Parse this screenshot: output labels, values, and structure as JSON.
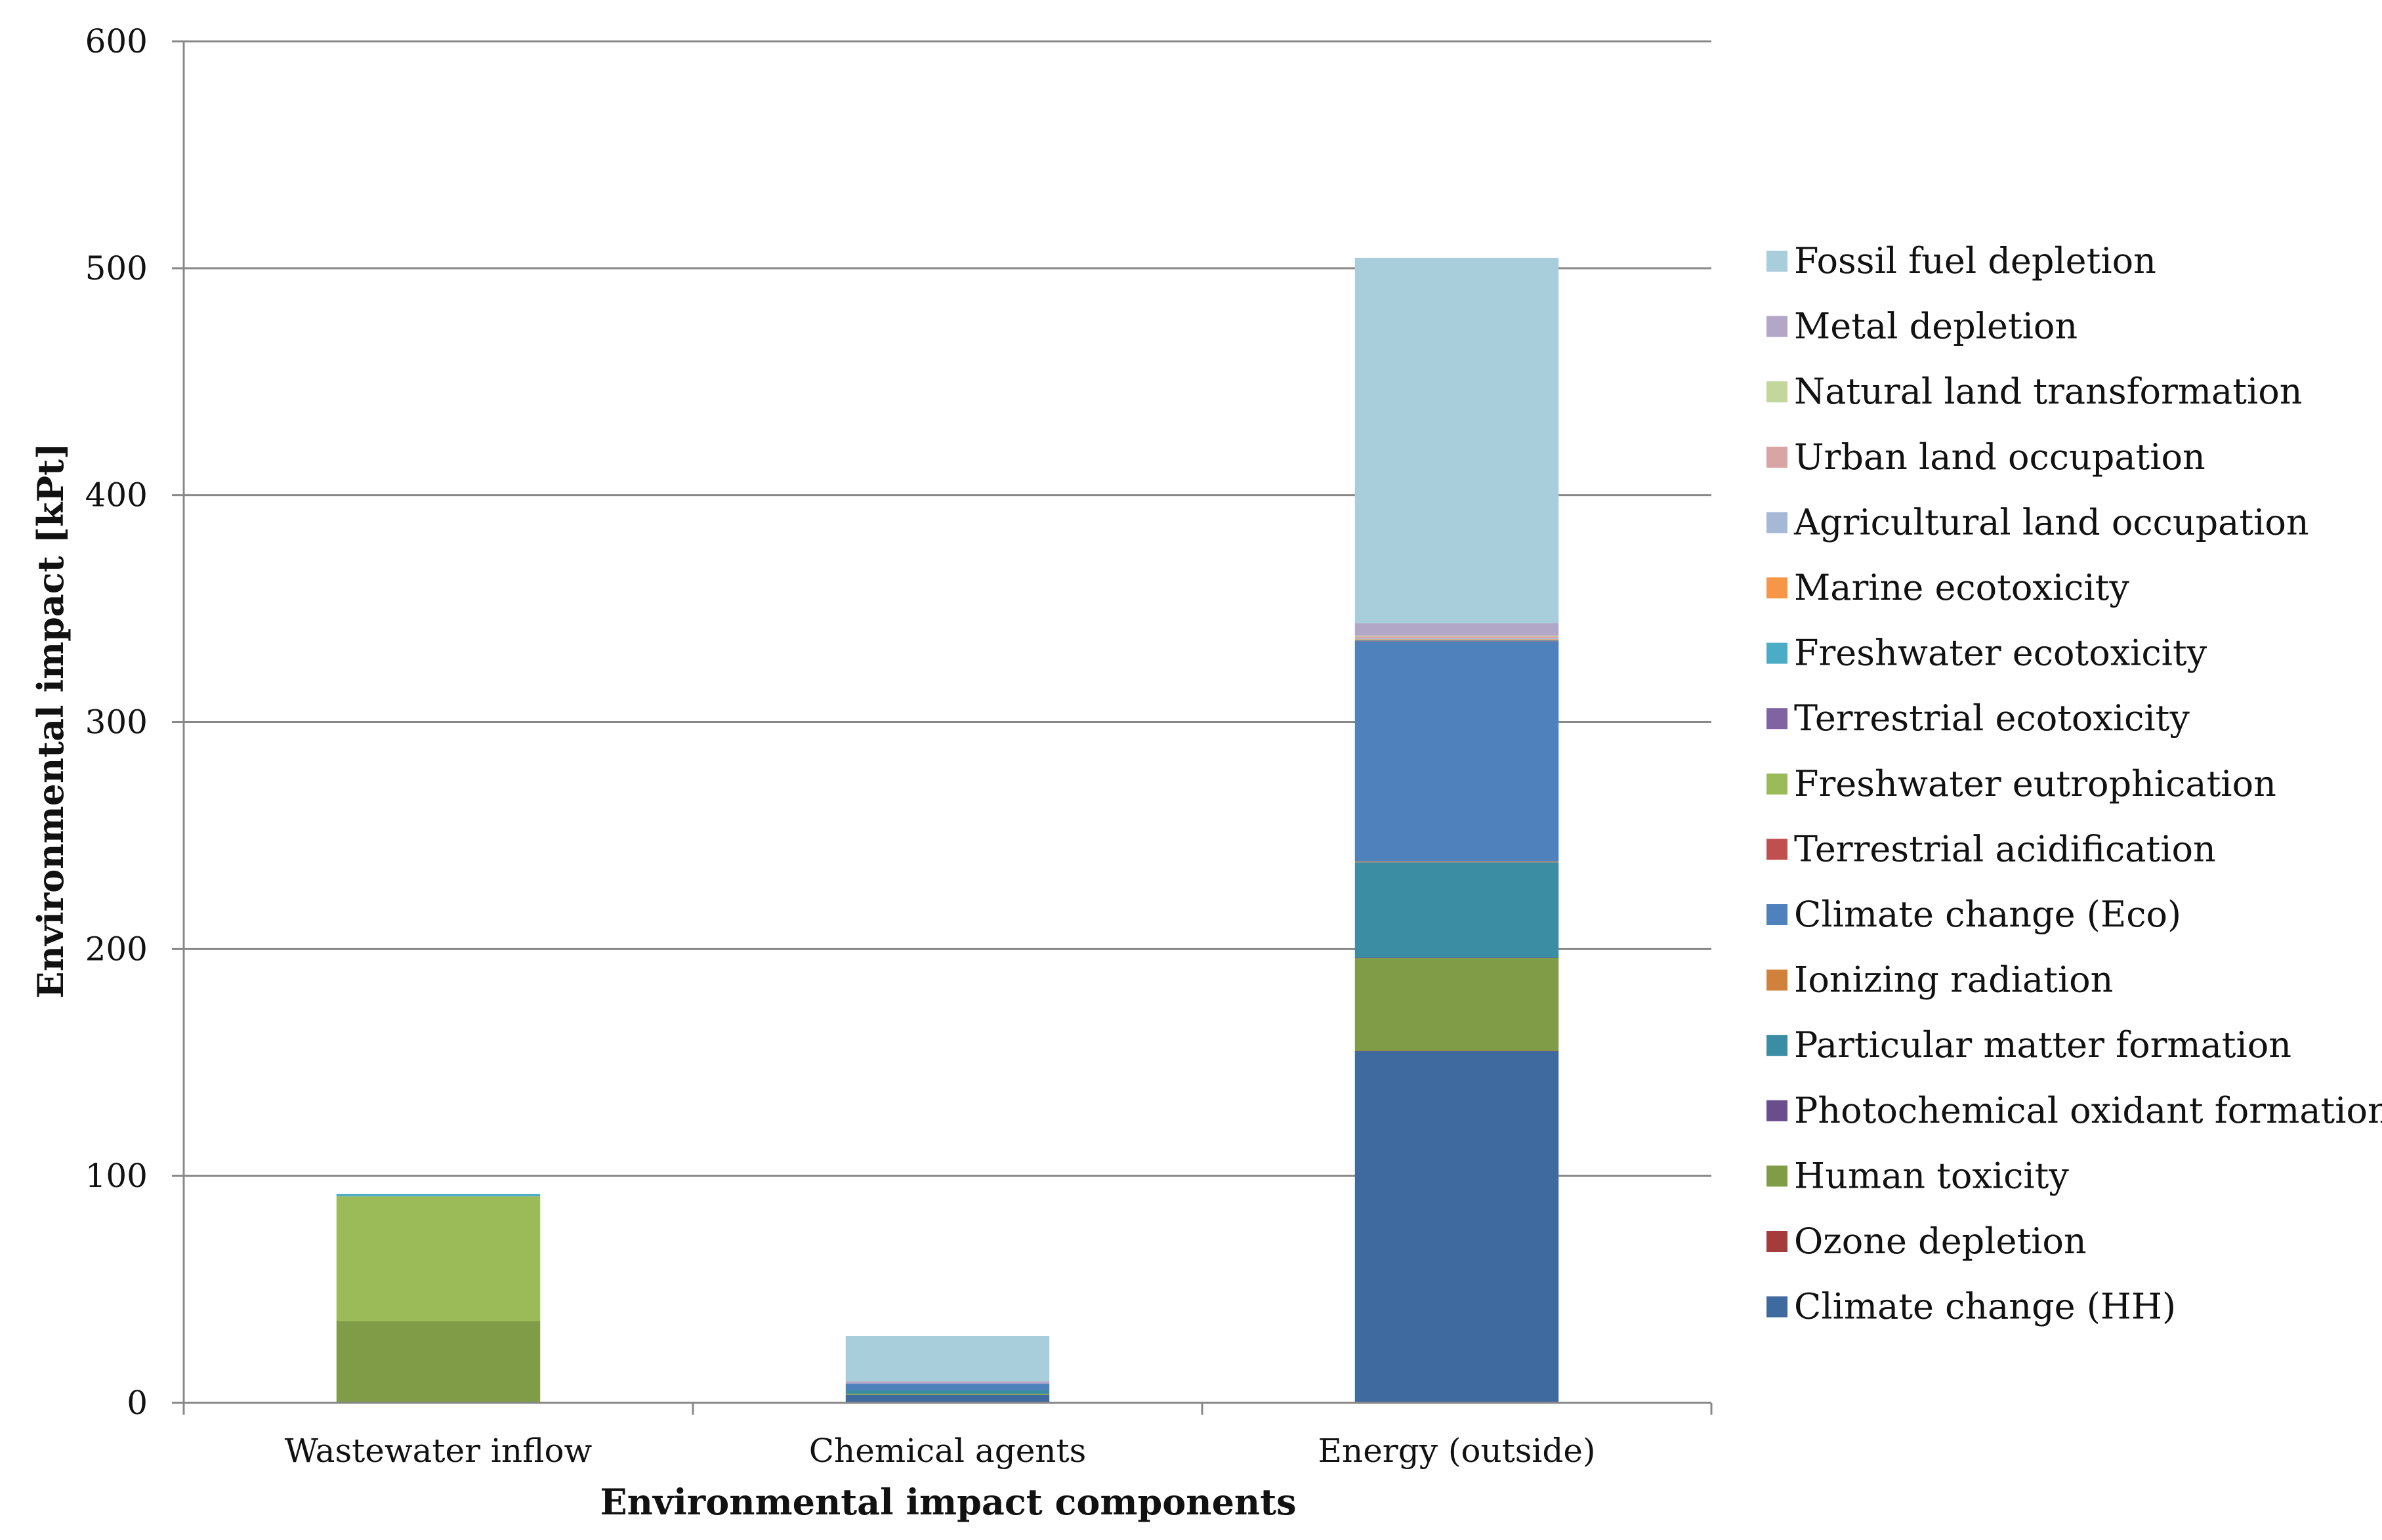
{
  "chart_data": {
    "type": "bar",
    "stacked": true,
    "title": "",
    "xlabel": "Environmental impact components",
    "ylabel": "Environmental impact [kPt]",
    "ylim": [
      0,
      600
    ],
    "yticks": [
      0,
      100,
      200,
      300,
      400,
      500,
      600
    ],
    "grid": true,
    "legend_position": "right",
    "categories": [
      "Wastewater inflow",
      "Chemical agents",
      "Energy (outside)"
    ],
    "series": [
      {
        "name": "Climate change (HH)",
        "color": "#3F6A9F",
        "values": [
          0.0,
          3.5,
          155.0
        ]
      },
      {
        "name": "Ozone depletion",
        "color": "#A33C3A",
        "values": [
          0.0,
          0.0,
          0.1
        ]
      },
      {
        "name": "Human toxicity",
        "color": "#809C47",
        "values": [
          36.0,
          0.5,
          41.0
        ]
      },
      {
        "name": "Photochemical oxidant formation",
        "color": "#6A4D8C",
        "values": [
          0.0,
          0.0,
          0.1
        ]
      },
      {
        "name": "Particular matter formation",
        "color": "#3A8DA2",
        "values": [
          0.0,
          1.5,
          42.0
        ]
      },
      {
        "name": "Ionizing radiation",
        "color": "#D0823C",
        "values": [
          0.0,
          0.0,
          0.4
        ]
      },
      {
        "name": "Climate change (Eco)",
        "color": "#4F81BD",
        "values": [
          0.0,
          3.0,
          97.0
        ]
      },
      {
        "name": "Terrestrial acidification",
        "color": "#C0504D",
        "values": [
          0.0,
          0.0,
          0.2
        ]
      },
      {
        "name": "Freshwater eutrophication",
        "color": "#9BBB59",
        "values": [
          55.0,
          0.0,
          0.1
        ]
      },
      {
        "name": "Terrestrial ecotoxicity",
        "color": "#8064A2",
        "values": [
          0.0,
          0.0,
          0.1
        ]
      },
      {
        "name": "Freshwater ecotoxicity",
        "color": "#4BACC6",
        "values": [
          1.0,
          0.0,
          0.3
        ]
      },
      {
        "name": "Marine ecotoxicity",
        "color": "#F79646",
        "values": [
          0.0,
          0.0,
          0.2
        ]
      },
      {
        "name": "Agricultural land occupation",
        "color": "#A5B9D7",
        "values": [
          0.0,
          0.0,
          0.5
        ]
      },
      {
        "name": "Urban land occupation",
        "color": "#D9A5A4",
        "values": [
          0.0,
          0.0,
          0.8
        ]
      },
      {
        "name": "Natural land transformation",
        "color": "#C3D69B",
        "values": [
          0.0,
          0.0,
          0.3
        ]
      },
      {
        "name": "Metal depletion",
        "color": "#B3A7C7",
        "values": [
          0.0,
          1.0,
          5.5
        ]
      },
      {
        "name": "Fossil fuel depletion",
        "color": "#A8CEDC",
        "values": [
          0.0,
          20.0,
          161.0
        ]
      }
    ]
  }
}
